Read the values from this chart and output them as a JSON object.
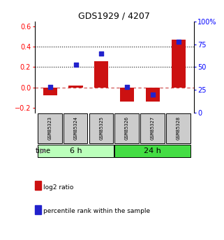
{
  "title": "GDS1929 / 4207",
  "samples": [
    "GSM85323",
    "GSM85324",
    "GSM85325",
    "GSM85326",
    "GSM85327",
    "GSM85328"
  ],
  "log2_ratio": [
    -0.08,
    0.02,
    0.26,
    -0.14,
    -0.14,
    0.47
  ],
  "percentile_rank": [
    28,
    53,
    65,
    28,
    20,
    78
  ],
  "groups": [
    {
      "label": "6 h",
      "indices": [
        0,
        1,
        2
      ],
      "color": "#bbffbb"
    },
    {
      "label": "24 h",
      "indices": [
        3,
        4,
        5
      ],
      "color": "#44dd44"
    }
  ],
  "ylim_left": [
    -0.25,
    0.65
  ],
  "ylim_right": [
    0,
    100
  ],
  "yticks_left": [
    -0.2,
    0.0,
    0.2,
    0.4,
    0.6
  ],
  "yticks_right": [
    0,
    25,
    50,
    75,
    100
  ],
  "hlines": [
    0.2,
    0.4
  ],
  "bar_color": "#cc1111",
  "dot_color": "#2222cc",
  "bar_width": 0.55,
  "zero_line_color": "#cc4444",
  "grid_line_color": "#111111",
  "background_color": "#ffffff",
  "sample_box_color": "#cccccc",
  "time_label": "time",
  "legend_log2": "log2 ratio",
  "legend_pct": "percentile rank within the sample"
}
